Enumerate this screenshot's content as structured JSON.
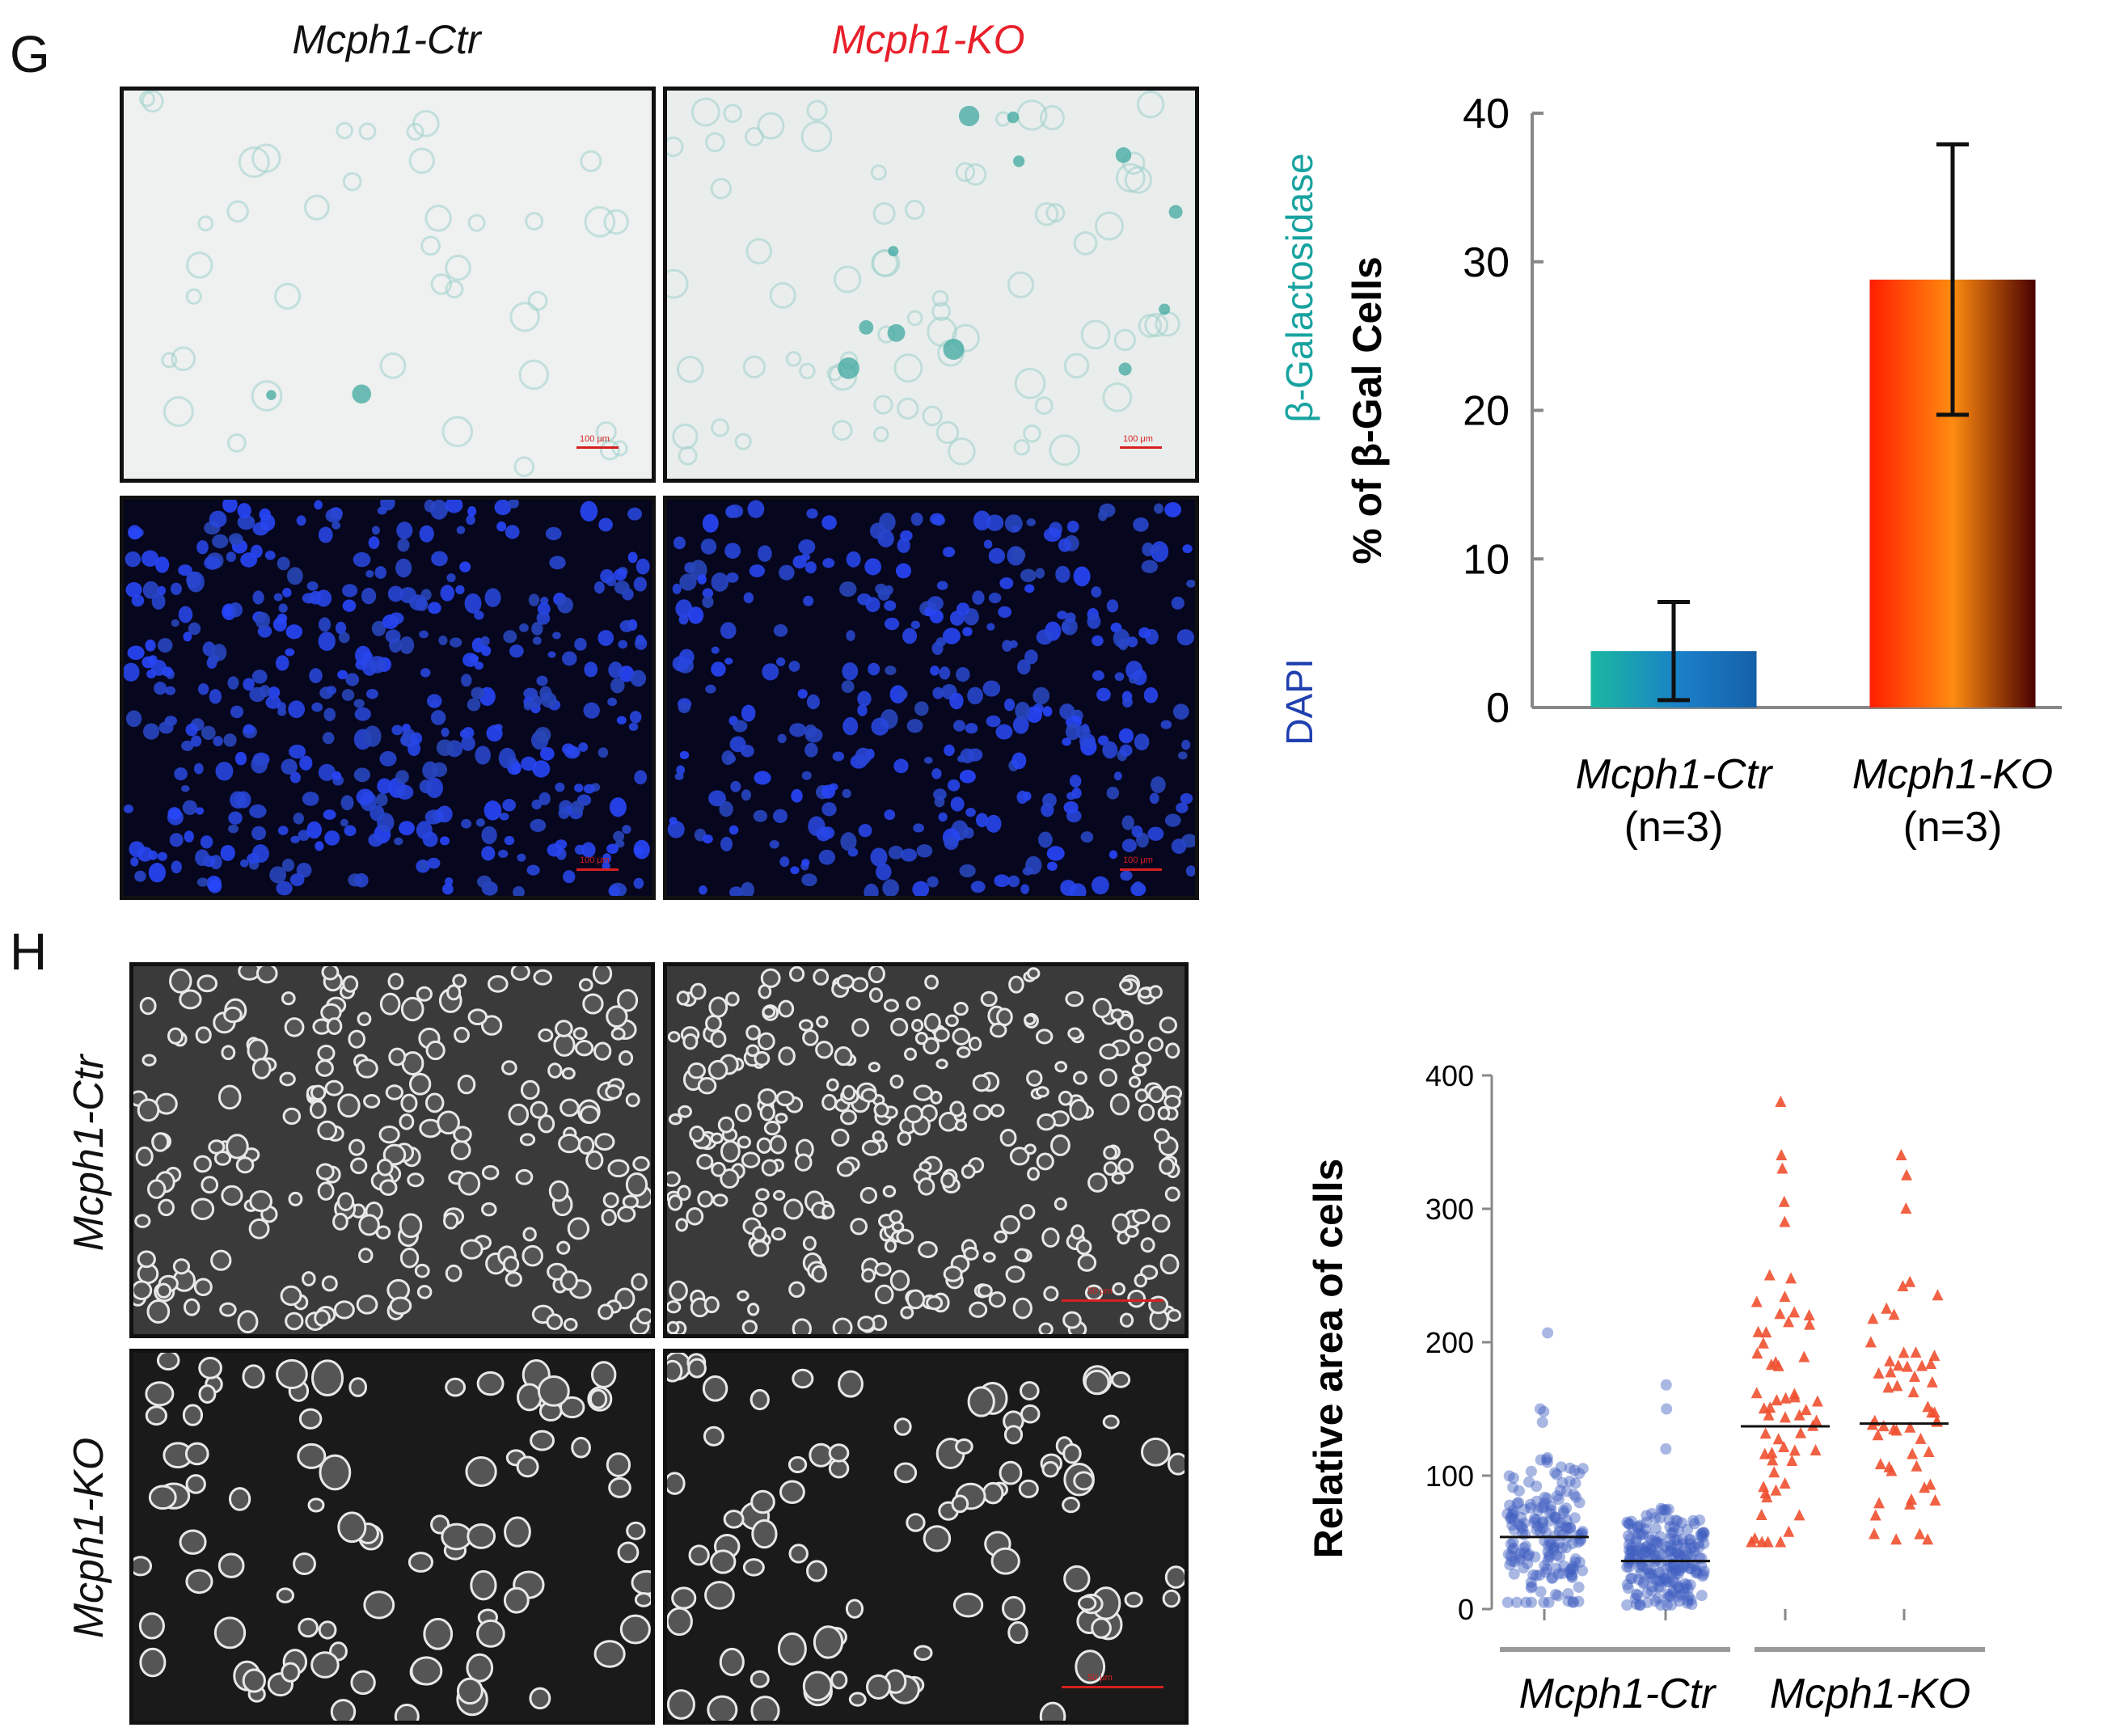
{
  "panel_g": {
    "letter": "G",
    "col_titles": [
      "Mcph1-Ctr",
      "Mcph1-KO"
    ],
    "row_labels": [
      "β-Galactosidase",
      "DAPI"
    ],
    "scale_label": "100 μm",
    "colors": {
      "ctr_title": "#111111",
      "ko_title": "#e8202a",
      "beta_gal": "#18a3a0",
      "dapi": "#2040b0"
    }
  },
  "panel_h": {
    "letter": "H",
    "row_labels": [
      "Mcph1-Ctr",
      "Mcph1-KO"
    ],
    "scale_label": "50 μm"
  },
  "chart_data": [
    {
      "type": "bar",
      "ylabel": "% of β-Gal Cells",
      "ylim": [
        0,
        40
      ],
      "yticks": [
        0,
        10,
        20,
        30,
        40
      ],
      "categories": [
        "Mcph1-Ctr",
        "Mcph1-KO"
      ],
      "category_sublabels": [
        "(n=3)",
        "(n=3)"
      ],
      "values": [
        3.8,
        28.8
      ],
      "error": [
        3.3,
        9.1
      ],
      "grid": false,
      "colors": {
        "ctr": [
          "#1ab8a2",
          "#1a7fc8",
          "#1560a8"
        ],
        "ko": [
          "#ff1e00",
          "#ff8c10",
          "#4a0000"
        ]
      }
    },
    {
      "type": "scatter",
      "ylabel": "Relative area of cells",
      "ylim": [
        0,
        400
      ],
      "yticks": [
        0,
        100,
        200,
        300,
        400
      ],
      "group_labels": [
        "Mcph1-Ctr",
        "Mcph1-KO"
      ],
      "grid": false,
      "series": [
        {
          "group": "Mcph1-Ctr",
          "marker": "circle",
          "color": "#4060c0",
          "median": 54,
          "min": 5,
          "max": 207,
          "notable": [
            207,
            150,
            148,
            140
          ]
        },
        {
          "group": "Mcph1-Ctr",
          "marker": "circle",
          "color": "#4060c0",
          "median": 36,
          "min": 3,
          "max": 168,
          "notable": [
            168,
            150,
            120
          ]
        },
        {
          "group": "Mcph1-KO",
          "marker": "triangle",
          "color": "#f05030",
          "median": 137,
          "min": 50,
          "max": 380,
          "notable": [
            380,
            340,
            330,
            305,
            290,
            250,
            230,
            220
          ]
        },
        {
          "group": "Mcph1-KO",
          "marker": "triangle",
          "color": "#f05030",
          "median": 139,
          "min": 52,
          "max": 340,
          "notable": [
            340,
            325,
            300,
            245,
            235,
            225
          ]
        }
      ]
    }
  ]
}
